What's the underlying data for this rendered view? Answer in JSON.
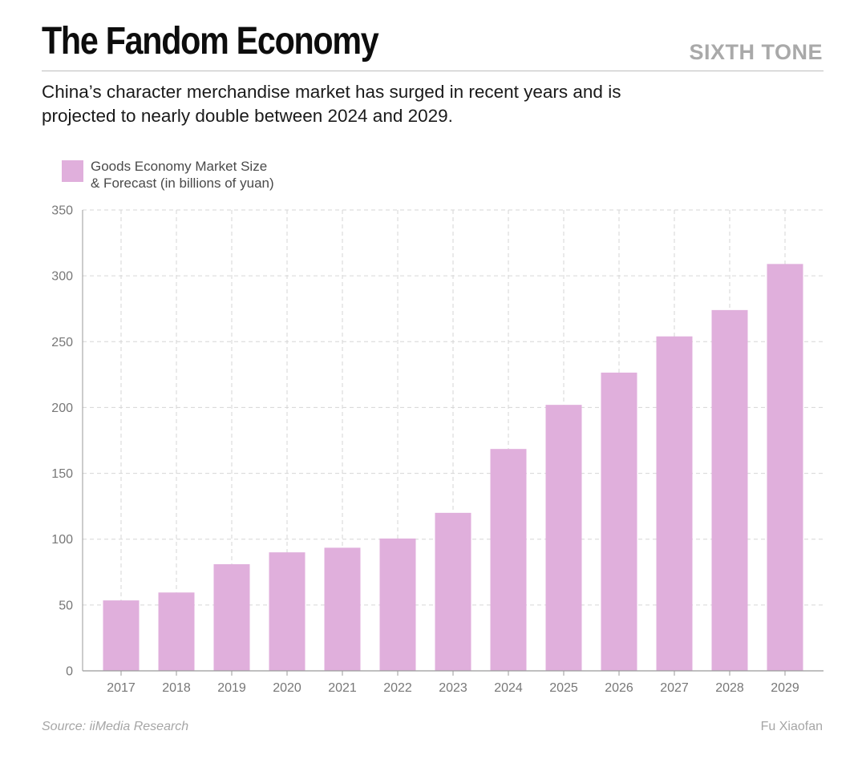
{
  "header": {
    "title": "The Fandom Economy",
    "brand": "SIXTH TONE",
    "subtitle": "China’s character merchandise market has surged in recent years and is projected to nearly double between 2024 and 2029."
  },
  "footer": {
    "source": "Source: iiMedia Research",
    "credit": "Fu Xiaofan"
  },
  "colors": {
    "bar": "#e0afdc",
    "grid": "#d6d6d6",
    "axis": "#9a9a9a",
    "title": "#0d0d0d",
    "brand": "#a9a9a9"
  },
  "chart_data": {
    "type": "bar",
    "title": "",
    "xlabel": "",
    "ylabel": "",
    "legend": {
      "placement": "top-left",
      "lines": [
        "Goods Economy Market Size",
        "& Forecast (in billions of yuan)"
      ]
    },
    "categories": [
      "2017",
      "2018",
      "2019",
      "2020",
      "2021",
      "2022",
      "2023",
      "2024",
      "2025",
      "2026",
      "2027",
      "2028",
      "2029"
    ],
    "series": [
      {
        "name": "Goods Economy Market Size & Forecast (in billions of yuan)",
        "values": [
          53.5,
          59.5,
          81,
          90,
          93.5,
          100.5,
          120,
          168.5,
          202,
          226.5,
          254,
          274,
          309
        ]
      }
    ],
    "ylim": [
      0,
      350
    ],
    "yticks": [
      0,
      50,
      100,
      150,
      200,
      250,
      300,
      350
    ],
    "grid": true
  }
}
